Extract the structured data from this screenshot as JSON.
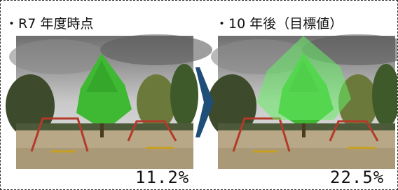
{
  "panels": [
    {
      "label": "・R7 年度時点",
      "value": "11.2%"
    },
    {
      "label": "・10 年後（目標値）",
      "value": "22.5%"
    }
  ]
}
